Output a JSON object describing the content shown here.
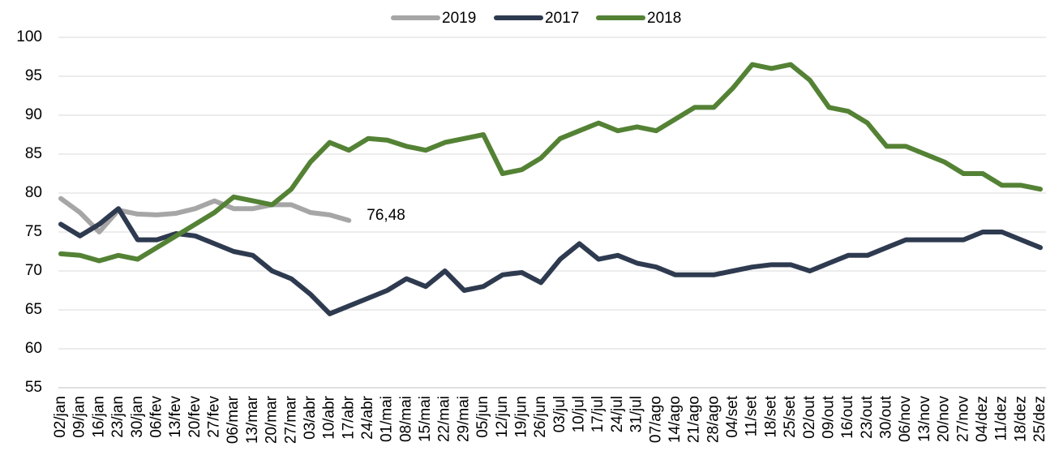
{
  "chart_data": {
    "type": "line",
    "categories": [
      "02/jan",
      "09/jan",
      "16/jan",
      "23/jan",
      "30/jan",
      "06/fev",
      "13/fev",
      "20/fev",
      "27/fev",
      "06/mar",
      "13/mar",
      "20/mar",
      "27/mar",
      "03/abr",
      "10/abr",
      "17/abr",
      "24/abr",
      "01/mai",
      "08/mai",
      "15/mai",
      "22/mai",
      "29/mai",
      "05/jun",
      "12/jun",
      "19/jun",
      "26/jun",
      "03/jul",
      "10/jul",
      "17/jul",
      "24/jul",
      "31/jul",
      "07/ago",
      "14/ago",
      "21/ago",
      "28/ago",
      "04/set",
      "11/set",
      "18/set",
      "25/set",
      "02/out",
      "09/out",
      "16/out",
      "23/out",
      "30/out",
      "06/nov",
      "13/nov",
      "20/nov",
      "27/nov",
      "04/dez",
      "11/dez",
      "18/dez",
      "25/dez"
    ],
    "series": [
      {
        "name": "2019",
        "color": "#a6a6a6",
        "values": [
          79.3,
          77.5,
          75,
          77.8,
          77.3,
          77.2,
          77.4,
          78,
          79,
          78,
          78,
          78.5,
          78.5,
          77.5,
          77.2,
          76.48,
          null,
          null,
          null,
          null,
          null,
          null,
          null,
          null,
          null,
          null,
          null,
          null,
          null,
          null,
          null,
          null,
          null,
          null,
          null,
          null,
          null,
          null,
          null,
          null,
          null,
          null,
          null,
          null,
          null,
          null,
          null,
          null,
          null,
          null,
          null,
          null
        ]
      },
      {
        "name": "2017",
        "color": "#2e3a4f",
        "values": [
          76,
          74.5,
          76,
          78,
          74,
          74,
          74.8,
          74.5,
          73.5,
          72.5,
          72,
          70,
          69,
          67,
          64.5,
          65.5,
          66.5,
          67.5,
          69,
          68,
          70,
          67.5,
          68,
          69.5,
          69.8,
          68.5,
          71.5,
          73.5,
          71.5,
          72,
          71,
          70.5,
          69.5,
          69.5,
          69.5,
          70,
          70.5,
          70.8,
          70.8,
          70,
          71,
          72,
          72,
          73,
          74,
          74,
          74,
          74,
          75,
          75,
          74,
          73
        ]
      },
      {
        "name": "2018",
        "color": "#548235",
        "values": [
          72.2,
          72,
          71.3,
          72,
          71.5,
          73,
          74.5,
          76,
          77.5,
          79.5,
          79,
          78.5,
          80.5,
          84,
          86.5,
          85.5,
          87,
          86.8,
          86,
          85.5,
          86.5,
          87,
          87.5,
          82.5,
          83,
          84.5,
          87,
          88,
          89,
          88,
          88.5,
          88,
          89.5,
          91,
          91,
          93.5,
          96.5,
          96,
          96.5,
          94.5,
          91,
          90.5,
          89,
          86,
          86,
          85,
          84,
          82.5,
          82.5,
          81,
          81,
          80.5
        ]
      }
    ],
    "annotation": "76,48",
    "ylim": [
      55,
      100
    ],
    "yticks": [
      55,
      60,
      65,
      70,
      75,
      80,
      85,
      90,
      95,
      100
    ],
    "grid": true
  }
}
